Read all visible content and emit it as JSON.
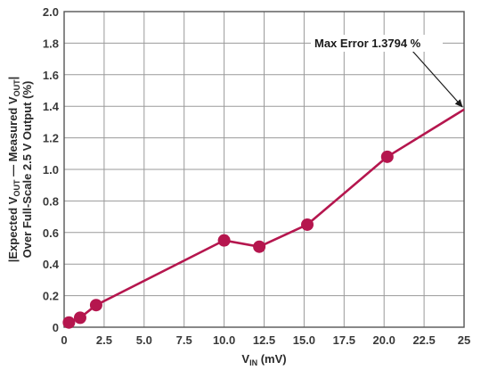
{
  "chart_data": {
    "type": "line",
    "x": [
      0.3,
      1.0,
      2.0,
      10.0,
      12.2,
      15.2,
      20.2,
      25.0
    ],
    "series": [
      {
        "values": [
          0.03,
          0.06,
          0.14,
          0.55,
          0.51,
          0.65,
          1.08,
          1.3794
        ],
        "markers": [
          true,
          true,
          true,
          true,
          true,
          true,
          true,
          false
        ]
      }
    ],
    "xlim": [
      0,
      25
    ],
    "ylim": [
      0,
      2.0
    ],
    "xticks": [
      "0",
      "2.5",
      "5.0",
      "7.5",
      "10.0",
      "12.5",
      "15.0",
      "17.5",
      "20.0",
      "22.5",
      "25"
    ],
    "yticks": [
      "0",
      "0.2",
      "0.4",
      "0.6",
      "0.8",
      "1.0",
      "1.2",
      "1.4",
      "1.6",
      "1.8",
      "2.0"
    ],
    "xlabel": {
      "main": "V",
      "sub": "IN",
      "unit": " (mV)"
    },
    "ylabel": {
      "line1_a": "|Expected V",
      "line1_sub1": "OUT",
      "line1_b": " — Measured V",
      "line1_sub2": "OUT",
      "line1_c": "|",
      "line2": "Over Full-Scale 2.5 V Output (%)"
    },
    "annotation": {
      "text": "Max Error 1.3794 %",
      "x": 25,
      "y": 1.3794
    },
    "grid": true,
    "colors": {
      "line": "#b5164e",
      "grid": "#9a9a9a",
      "text": "#3a3a3a"
    }
  }
}
